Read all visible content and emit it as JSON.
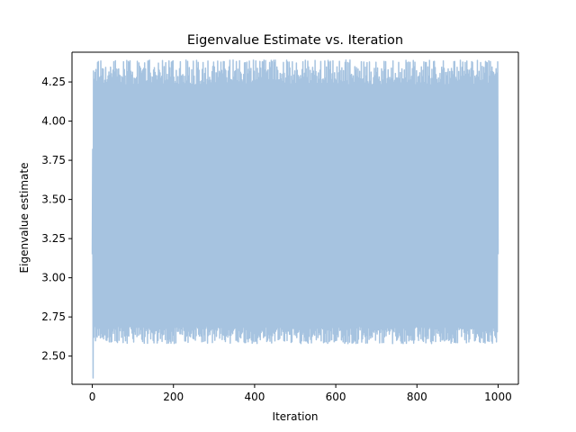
{
  "chart_data": {
    "type": "line",
    "title": "Eigenvalue Estimate vs. Iteration",
    "xlabel": "Iteration",
    "ylabel": "Eigenvalue estimate",
    "xlim": [
      -50,
      1050
    ],
    "ylim": [
      2.32,
      4.44
    ],
    "xticks": [
      0,
      200,
      400,
      600,
      800,
      1000
    ],
    "xtick_labels": [
      "0",
      "200",
      "400",
      "600",
      "800",
      "1000"
    ],
    "yticks": [
      2.5,
      2.75,
      3.0,
      3.25,
      3.5,
      3.75,
      4.0,
      4.25
    ],
    "ytick_labels": [
      "2.50",
      "2.75",
      "3.00",
      "3.25",
      "3.50",
      "3.75",
      "4.00",
      "4.25"
    ],
    "grid": false,
    "series": [
      {
        "name": "",
        "color": "#a6c3e0",
        "oscillation": "alternates every iteration between a high and a low value",
        "n_points": 1001,
        "x_range": [
          0,
          1000
        ],
        "initial_points": [
          {
            "x": 0,
            "y": 3.15
          },
          {
            "x": 1,
            "y": 3.82
          },
          {
            "x": 2,
            "y": 2.36
          },
          {
            "x": 3,
            "y": 4.32
          },
          {
            "x": 4,
            "y": 2.62
          }
        ],
        "final_point": {
          "x": 1000,
          "y": 3.15
        },
        "high_band": [
          4.23,
          4.39
        ],
        "low_band": [
          2.58,
          2.69
        ]
      }
    ]
  }
}
